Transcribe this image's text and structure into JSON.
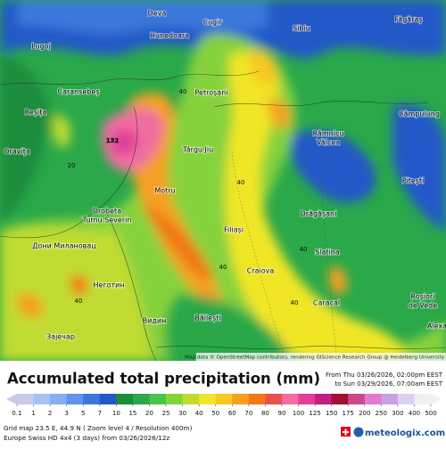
{
  "places": [
    "Deva",
    "Cugir",
    "Sibiu",
    "Făgăraș",
    "Lugoj",
    "Hunedoara",
    "Caransebeș",
    "Reșița",
    "Petroșani",
    "Oravița",
    "Târgu Jiu",
    "Râmnicu",
    "Vâlcea",
    "Câmpulung",
    "Pitești",
    "Drobeta",
    "Turnu Severin",
    "Motru",
    "Filiași",
    "Drăgășani",
    "Slatina",
    "Craiova",
    "Caracal",
    "Roșiori",
    "de Vede",
    "Băilești",
    "Alexa",
    "Видин",
    "Неготин",
    "Дони Милановац",
    "Зајечар"
  ],
  "map_values": [
    "132",
    "40",
    "20",
    "40",
    "40",
    "40",
    "40",
    "40"
  ],
  "attribution": "Map data © OpenStreetMap contributors, rendering GIScience Research Group @ Heidelberg University",
  "title": "Accumulated total precipitation (mm)",
  "period_from": "From Thu 03/26/2026, 02:00pm EEST",
  "period_to": "to Sun 03/29/2026, 07:00am EEST",
  "legend": {
    "labels": [
      0.1,
      1,
      2,
      3,
      5,
      7,
      10,
      15,
      20,
      25,
      30,
      40,
      50,
      60,
      70,
      80,
      90,
      100,
      125,
      150,
      175,
      200,
      250,
      300,
      400,
      500
    ],
    "colors": [
      "#c9c9e8",
      "#a7c2f2",
      "#86aef0",
      "#5f94ea",
      "#3a78dc",
      "#2458c8",
      "#1a8c3c",
      "#2aa84a",
      "#4cc24a",
      "#86d23c",
      "#c0dc32",
      "#f0e628",
      "#f8c820",
      "#f5a020",
      "#f07818",
      "#e85050",
      "#f06ea0",
      "#e0409a",
      "#c02080",
      "#a01030",
      "#c84a8c",
      "#e07ad0",
      "#c8a0e6",
      "#dcd0f0",
      "#f0f0f0"
    ]
  },
  "grid_info": "Grid map 23.5 E, 44.9 N ( Zoom level 4 / Resolution 400m)",
  "model_info": "Europe Swiss HD 4x4 (3 days) from 03/26/2026/12z",
  "brand": "meteologix.com"
}
